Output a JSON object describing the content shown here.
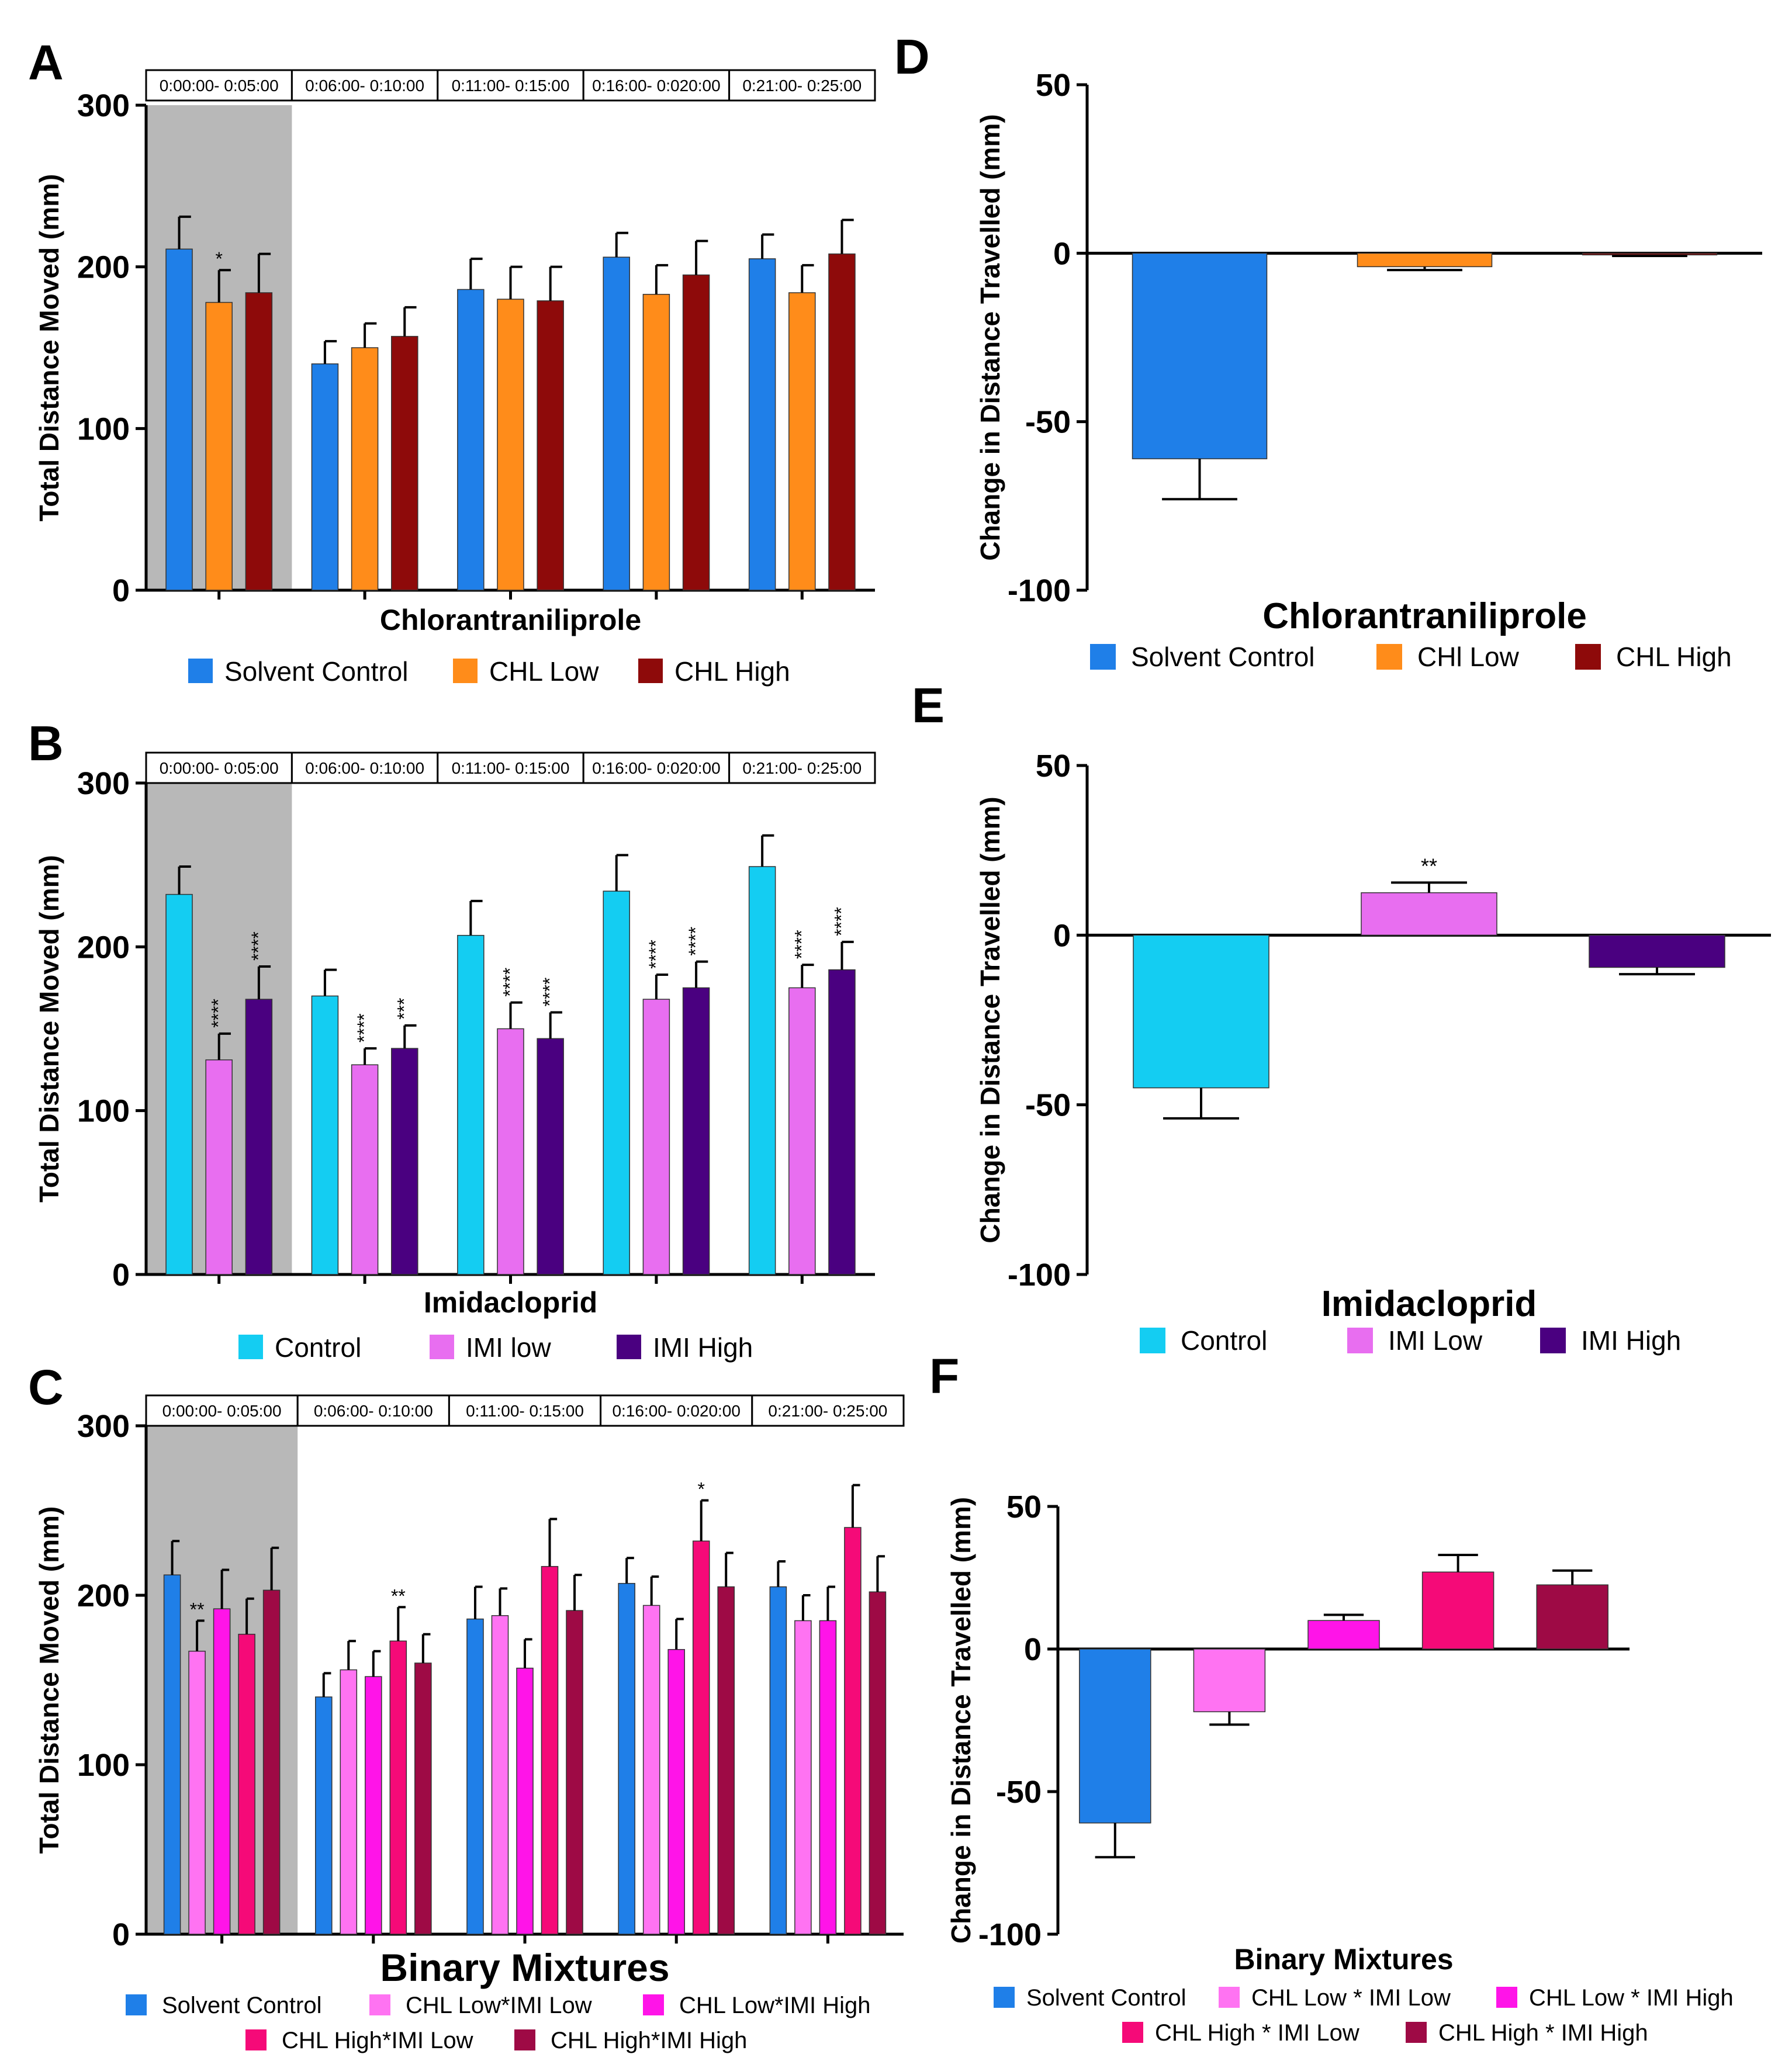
{
  "panels": {
    "A": {
      "letter": "A",
      "type": "bar",
      "ylabel": "Total Distance Moved (mm)",
      "xlabel": "Chlorantraniliprole",
      "ylim": [
        0,
        300
      ],
      "yticks": [
        "0",
        "100",
        "200",
        "300"
      ],
      "time_windows": [
        "0:00:00- 0:05:00",
        "0:06:00- 0:10:00",
        "0:11:00- 0:15:00",
        "0:16:00- 0:020:00",
        "0:21:00- 0:25:00"
      ],
      "series": [
        {
          "name": "Solvent Control",
          "color": "#1f7fe8",
          "values": [
            211,
            140,
            186,
            206,
            205
          ],
          "errors": [
            20,
            14,
            19,
            15,
            15
          ],
          "stars": [
            "",
            "",
            "",
            "",
            ""
          ]
        },
        {
          "name": "CHL Low",
          "color": "#ff8c1a",
          "values": [
            178,
            150,
            180,
            183,
            184
          ],
          "errors": [
            20,
            15,
            20,
            18,
            17
          ],
          "stars": [
            "*",
            "",
            "",
            "",
            ""
          ]
        },
        {
          "name": "CHL High",
          "color": "#8e0a0a",
          "values": [
            184,
            157,
            179,
            195,
            208
          ],
          "errors": [
            24,
            18,
            21,
            21,
            21
          ],
          "stars": [
            "",
            "",
            "",
            "",
            ""
          ]
        }
      ]
    },
    "B": {
      "letter": "B",
      "type": "bar",
      "ylabel": "Total Distance Moved (mm)",
      "xlabel": "Imidacloprid",
      "ylim": [
        0,
        300
      ],
      "yticks": [
        "0",
        "100",
        "200",
        "300"
      ],
      "time_windows": [
        "0:00:00- 0:05:00",
        "0:06:00- 0:10:00",
        "0:11:00- 0:15:00",
        "0:16:00- 0:020:00",
        "0:21:00- 0:25:00"
      ],
      "series": [
        {
          "name": "Control",
          "color": "#14cdf2",
          "values": [
            232,
            170,
            207,
            234,
            249
          ],
          "errors": [
            17,
            16,
            21,
            22,
            19
          ],
          "stars": [
            "",
            "",
            "",
            "",
            ""
          ]
        },
        {
          "name": "IMI low",
          "color": "#e86ef0",
          "values": [
            131,
            128,
            150,
            168,
            175
          ],
          "errors": [
            16,
            10,
            16,
            15,
            14
          ],
          "stars": [
            "****",
            "****",
            "****",
            "****",
            "****"
          ]
        },
        {
          "name": "IMI High",
          "color": "#4a0080",
          "values": [
            168,
            138,
            144,
            175,
            186
          ],
          "errors": [
            20,
            14,
            16,
            16,
            17
          ],
          "stars": [
            "****",
            "***",
            "****",
            "****",
            "****"
          ]
        }
      ]
    },
    "C": {
      "letter": "C",
      "type": "bar",
      "ylabel": "Total Distance Moved (mm)",
      "xlabel": "Binary Mixtures",
      "ylim": [
        0,
        300
      ],
      "yticks": [
        "0",
        "100",
        "200",
        "300"
      ],
      "time_windows": [
        "0:00:00- 0:05:00",
        "0:06:00- 0:10:00",
        "0:11:00- 0:15:00",
        "0:16:00- 0:020:00",
        "0:21:00- 0:25:00"
      ],
      "series": [
        {
          "name": "Solvent Control",
          "color": "#1f7fe8",
          "values": [
            212,
            140,
            186,
            207,
            205
          ],
          "errors": [
            20,
            14,
            19,
            15,
            15
          ],
          "stars": [
            "",
            "",
            "",
            "",
            ""
          ]
        },
        {
          "name": "CHL Low*IMI Low",
          "color": "#ff73f2",
          "values": [
            167,
            156,
            188,
            194,
            185
          ],
          "errors": [
            18,
            17,
            16,
            17,
            15
          ],
          "stars": [
            "**",
            "",
            "",
            "",
            ""
          ]
        },
        {
          "name": "CHL Low*IMI High",
          "color": "#ff14e8",
          "values": [
            192,
            152,
            157,
            168,
            185
          ],
          "errors": [
            23,
            15,
            17,
            18,
            20
          ],
          "stars": [
            "",
            "",
            "",
            "",
            ""
          ]
        },
        {
          "name": "CHL High*IMI Low",
          "color": "#f50a78",
          "values": [
            177,
            173,
            217,
            232,
            240
          ],
          "errors": [
            21,
            20,
            28,
            24,
            25
          ],
          "stars": [
            "",
            "**",
            "",
            "*",
            ""
          ]
        },
        {
          "name": "CHL High*IMI High",
          "color": "#9e0a45",
          "values": [
            203,
            160,
            191,
            205,
            202
          ],
          "errors": [
            25,
            17,
            21,
            20,
            21
          ],
          "stars": [
            "",
            "",
            "",
            "",
            ""
          ]
        }
      ]
    },
    "D": {
      "letter": "D",
      "type": "bar",
      "ylabel": "Change in Distance Travelled (mm)",
      "xlabel": "Chlorantraniliprole",
      "ylim": [
        -100,
        50
      ],
      "yticks": [
        "-100",
        "-50",
        "0",
        "50"
      ],
      "categories": [
        "Solvent Control",
        "CHl Low",
        "CHL High"
      ],
      "colors": [
        "#1f7fe8",
        "#ff8c1a",
        "#8e0a0a"
      ],
      "values": [
        -61,
        -4,
        -0.5
      ],
      "errors": [
        12,
        1,
        0.3
      ],
      "stars": [
        "",
        "",
        ""
      ]
    },
    "E": {
      "letter": "E",
      "type": "bar",
      "ylabel": "Change in Distance Travelled (mm)",
      "xlabel": "Imidacloprid",
      "ylim": [
        -100,
        50
      ],
      "yticks": [
        "-100",
        "-50",
        "0",
        "50"
      ],
      "categories": [
        "Control",
        "IMI Low",
        "IMI High"
      ],
      "colors": [
        "#14cdf2",
        "#e86ef0",
        "#4a0080"
      ],
      "values": [
        -45,
        12.5,
        -9.5
      ],
      "errors": [
        9,
        3,
        2
      ],
      "stars": [
        "",
        "**",
        ""
      ]
    },
    "F": {
      "letter": "F",
      "type": "bar",
      "ylabel": "Change in Distance Travelled (mm)",
      "xlabel": "Binary Mixtures",
      "ylim": [
        -100,
        50
      ],
      "yticks": [
        "-100",
        "-50",
        "0",
        "50"
      ],
      "categories": [
        "Solvent Control",
        "CHL Low * IMI Low",
        "CHL Low * IMI High",
        "CHL High * IMI Low",
        "CHL High * IMI High"
      ],
      "colors": [
        "#1f7fe8",
        "#ff73f2",
        "#ff14e8",
        "#f50a78",
        "#9e0a45"
      ],
      "values": [
        -61,
        -22,
        10,
        27,
        22.5
      ],
      "errors": [
        12,
        4.5,
        2,
        6,
        5
      ],
      "stars": [
        "",
        "",
        "",
        "",
        ""
      ]
    }
  }
}
